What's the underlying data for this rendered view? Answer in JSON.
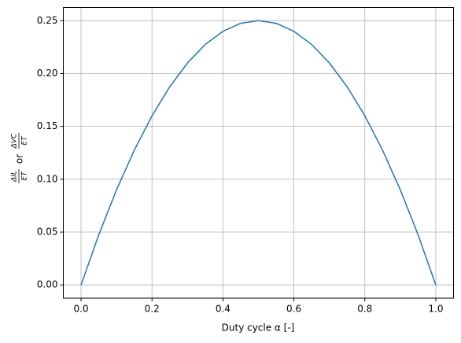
{
  "chart_data": {
    "type": "line",
    "xlabel": "Duty cycle α [-]",
    "ylabel": {
      "num1": "ΔIL",
      "den1": "ET",
      "mid": "or",
      "num2": "ΔVC",
      "den2": "ET"
    },
    "x": [
      0,
      0.05,
      0.1,
      0.15,
      0.2,
      0.25,
      0.3,
      0.35,
      0.4,
      0.45,
      0.5,
      0.55,
      0.6,
      0.65,
      0.7,
      0.75,
      0.8,
      0.85,
      0.9,
      0.95,
      1
    ],
    "series": [
      {
        "color": "#1f77b4",
        "values": [
          0,
          0.0475,
          0.09,
          0.1275,
          0.16,
          0.1875,
          0.21,
          0.2275,
          0.24,
          0.2475,
          0.25,
          0.2475,
          0.24,
          0.2275,
          0.21,
          0.1875,
          0.16,
          0.1275,
          0.09,
          0.0475,
          0
        ]
      }
    ],
    "xlim": [
      -0.05,
      1.05
    ],
    "ylim": [
      -0.0125,
      0.2625
    ],
    "xticks": [
      {
        "value": 0,
        "label": "0.0"
      },
      0.2,
      0.4,
      0.6,
      0.8,
      {
        "value": 1,
        "label": "1.0"
      }
    ],
    "yticks": [
      {
        "value": 0,
        "label": "0.00"
      },
      {
        "value": 0.05,
        "label": "0.05"
      },
      {
        "value": 0.1,
        "label": "0.10"
      },
      {
        "value": 0.15,
        "label": "0.15"
      },
      {
        "value": 0.2,
        "label": "0.20"
      },
      {
        "value": 0.25,
        "label": "0.25"
      }
    ],
    "grid": true
  }
}
